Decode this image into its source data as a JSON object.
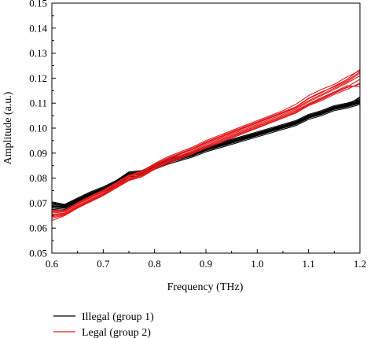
{
  "chart_data": {
    "type": "line",
    "title": "",
    "xlabel": "Frequency (THz)",
    "ylabel": "Amplitude (a.u.)",
    "xlim": [
      0.6,
      1.2
    ],
    "ylim": [
      0.05,
      0.15
    ],
    "xticks": [
      "0.6",
      "0.7",
      "0.8",
      "0.9",
      "1.0",
      "1.1",
      "1.2"
    ],
    "yticks": [
      "0.05",
      "0.06",
      "0.07",
      "0.08",
      "0.09",
      "0.10",
      "0.11",
      "0.12",
      "0.13",
      "0.14",
      "0.15"
    ],
    "grid": false,
    "legend_position": "bottom-left, below plot",
    "x": [
      0.6,
      0.625,
      0.65,
      0.675,
      0.7,
      0.725,
      0.75,
      0.775,
      0.8,
      0.825,
      0.85,
      0.875,
      0.9,
      0.925,
      0.95,
      0.975,
      1.0,
      1.025,
      1.05,
      1.075,
      1.1,
      1.125,
      1.15,
      1.175,
      1.2
    ],
    "series": [
      {
        "name": "Illegal (group 1)",
        "color": "#000000",
        "curves": [
          [
            0.069,
            0.0685,
            0.071,
            0.0735,
            0.0755,
            0.078,
            0.0815,
            0.082,
            0.0845,
            0.0865,
            0.088,
            0.0895,
            0.0915,
            0.093,
            0.0945,
            0.096,
            0.0975,
            0.099,
            0.1005,
            0.102,
            0.1045,
            0.106,
            0.108,
            0.109,
            0.1105
          ],
          [
            0.068,
            0.0675,
            0.0705,
            0.073,
            0.075,
            0.0775,
            0.081,
            0.0815,
            0.084,
            0.086,
            0.0875,
            0.089,
            0.091,
            0.0925,
            0.094,
            0.0955,
            0.097,
            0.0985,
            0.1,
            0.1015,
            0.104,
            0.1055,
            0.1075,
            0.1085,
            0.11
          ],
          [
            0.07,
            0.069,
            0.0715,
            0.074,
            0.076,
            0.0785,
            0.082,
            0.0825,
            0.085,
            0.087,
            0.0885,
            0.09,
            0.092,
            0.0935,
            0.095,
            0.0965,
            0.098,
            0.0995,
            0.101,
            0.1025,
            0.105,
            0.1065,
            0.1085,
            0.1095,
            0.111
          ],
          [
            0.0685,
            0.068,
            0.0708,
            0.0732,
            0.0752,
            0.0778,
            0.0812,
            0.0818,
            0.0842,
            0.0862,
            0.0878,
            0.0893,
            0.0912,
            0.0928,
            0.0943,
            0.0958,
            0.0973,
            0.0988,
            0.1003,
            0.1018,
            0.1043,
            0.1058,
            0.1078,
            0.1088,
            0.1103
          ],
          [
            0.0695,
            0.0688,
            0.0712,
            0.0738,
            0.0758,
            0.0782,
            0.0818,
            0.0822,
            0.0848,
            0.0868,
            0.0882,
            0.0898,
            0.0918,
            0.0933,
            0.0948,
            0.0963,
            0.0978,
            0.0993,
            0.1008,
            0.1023,
            0.1048,
            0.1063,
            0.1083,
            0.1093,
            0.1108
          ],
          [
            0.0675,
            0.067,
            0.07,
            0.0725,
            0.0745,
            0.077,
            0.0805,
            0.081,
            0.0835,
            0.0855,
            0.087,
            0.0885,
            0.0905,
            0.092,
            0.0935,
            0.095,
            0.0965,
            0.098,
            0.0995,
            0.101,
            0.1035,
            0.105,
            0.107,
            0.108,
            0.1095
          ],
          [
            0.0705,
            0.0695,
            0.072,
            0.0745,
            0.0765,
            0.079,
            0.0825,
            0.083,
            0.0855,
            0.0875,
            0.089,
            0.0905,
            0.0925,
            0.094,
            0.0955,
            0.097,
            0.0985,
            0.1,
            0.1015,
            0.103,
            0.1055,
            0.107,
            0.109,
            0.11,
            0.1115
          ],
          [
            0.069,
            0.0683,
            0.0709,
            0.0734,
            0.0754,
            0.0779,
            0.0814,
            0.0819,
            0.0844,
            0.0864,
            0.0879,
            0.0894,
            0.0914,
            0.0929,
            0.0944,
            0.0959,
            0.0974,
            0.0989,
            0.1004,
            0.1019,
            0.1044,
            0.1059,
            0.1079,
            0.1089,
            0.1125
          ],
          [
            0.0688,
            0.0681,
            0.0707,
            0.0731,
            0.0751,
            0.0776,
            0.0811,
            0.0816,
            0.0841,
            0.0861,
            0.0876,
            0.0891,
            0.0911,
            0.0926,
            0.0941,
            0.0956,
            0.0971,
            0.0986,
            0.1001,
            0.1016,
            0.1041,
            0.1056,
            0.1076,
            0.1086,
            0.1115
          ],
          [
            0.07,
            0.0692,
            0.0716,
            0.0741,
            0.0761,
            0.0786,
            0.0821,
            0.0826,
            0.0851,
            0.0871,
            0.0886,
            0.0901,
            0.0921,
            0.0936,
            0.0951,
            0.0966,
            0.0981,
            0.0996,
            0.1011,
            0.1026,
            0.1051,
            0.1066,
            0.1086,
            0.1096,
            0.1121
          ]
        ]
      },
      {
        "name": "Legal (group 2)",
        "color": "#e31a1c",
        "curves": [
          [
            0.066,
            0.0665,
            0.0695,
            0.072,
            0.0745,
            0.0775,
            0.0805,
            0.082,
            0.085,
            0.0875,
            0.0895,
            0.0915,
            0.094,
            0.096,
            0.098,
            0.1,
            0.102,
            0.104,
            0.106,
            0.108,
            0.111,
            0.1135,
            0.116,
            0.1185,
            0.122
          ],
          [
            0.0655,
            0.066,
            0.069,
            0.0715,
            0.074,
            0.077,
            0.08,
            0.0815,
            0.0845,
            0.087,
            0.089,
            0.091,
            0.0935,
            0.0955,
            0.0975,
            0.0995,
            0.1015,
            0.1035,
            0.1055,
            0.1075,
            0.1105,
            0.113,
            0.1155,
            0.118,
            0.121
          ],
          [
            0.063,
            0.065,
            0.068,
            0.0705,
            0.073,
            0.076,
            0.079,
            0.0805,
            0.0835,
            0.0858,
            0.0878,
            0.0898,
            0.092,
            0.094,
            0.096,
            0.098,
            0.1,
            0.102,
            0.104,
            0.106,
            0.109,
            0.111,
            0.1135,
            0.1155,
            0.118
          ],
          [
            0.067,
            0.0672,
            0.07,
            0.0725,
            0.075,
            0.078,
            0.081,
            0.0825,
            0.0855,
            0.088,
            0.09,
            0.092,
            0.0945,
            0.0965,
            0.0985,
            0.1005,
            0.1025,
            0.1045,
            0.1065,
            0.1085,
            0.112,
            0.1145,
            0.1165,
            0.119,
            0.1225
          ],
          [
            0.0645,
            0.0655,
            0.0685,
            0.071,
            0.0735,
            0.0765,
            0.0795,
            0.081,
            0.084,
            0.0863,
            0.0883,
            0.0903,
            0.0926,
            0.0946,
            0.0966,
            0.0986,
            0.1006,
            0.1026,
            0.1046,
            0.1066,
            0.1096,
            0.1118,
            0.1142,
            0.1165,
            0.1195
          ],
          [
            0.0665,
            0.0668,
            0.0698,
            0.0722,
            0.0748,
            0.0778,
            0.0808,
            0.0822,
            0.0852,
            0.0878,
            0.0898,
            0.0918,
            0.0943,
            0.0963,
            0.0983,
            0.1003,
            0.1023,
            0.1043,
            0.1063,
            0.1083,
            0.1118,
            0.1142,
            0.1168,
            0.1195,
            0.1235
          ],
          [
            0.065,
            0.0658,
            0.0688,
            0.0712,
            0.0738,
            0.0768,
            0.0798,
            0.0812,
            0.0842,
            0.0866,
            0.0886,
            0.0906,
            0.093,
            0.095,
            0.097,
            0.099,
            0.101,
            0.103,
            0.105,
            0.107,
            0.1098,
            0.1122,
            0.1145,
            0.117,
            0.1165
          ],
          [
            0.0668,
            0.067,
            0.0702,
            0.0728,
            0.0752,
            0.0782,
            0.0812,
            0.0828,
            0.0858,
            0.0885,
            0.0905,
            0.0925,
            0.095,
            0.097,
            0.099,
            0.101,
            0.103,
            0.105,
            0.107,
            0.1095,
            0.113,
            0.1155,
            0.1175,
            0.1205,
            0.123
          ],
          [
            0.064,
            0.0652,
            0.0682,
            0.0707,
            0.0732,
            0.0762,
            0.0792,
            0.0806,
            0.0836,
            0.0858,
            0.0878,
            0.0898,
            0.0922,
            0.0942,
            0.0962,
            0.0982,
            0.1002,
            0.1022,
            0.1042,
            0.1062,
            0.1092,
            0.1115,
            0.114,
            0.1162,
            0.1175
          ]
        ]
      }
    ]
  }
}
